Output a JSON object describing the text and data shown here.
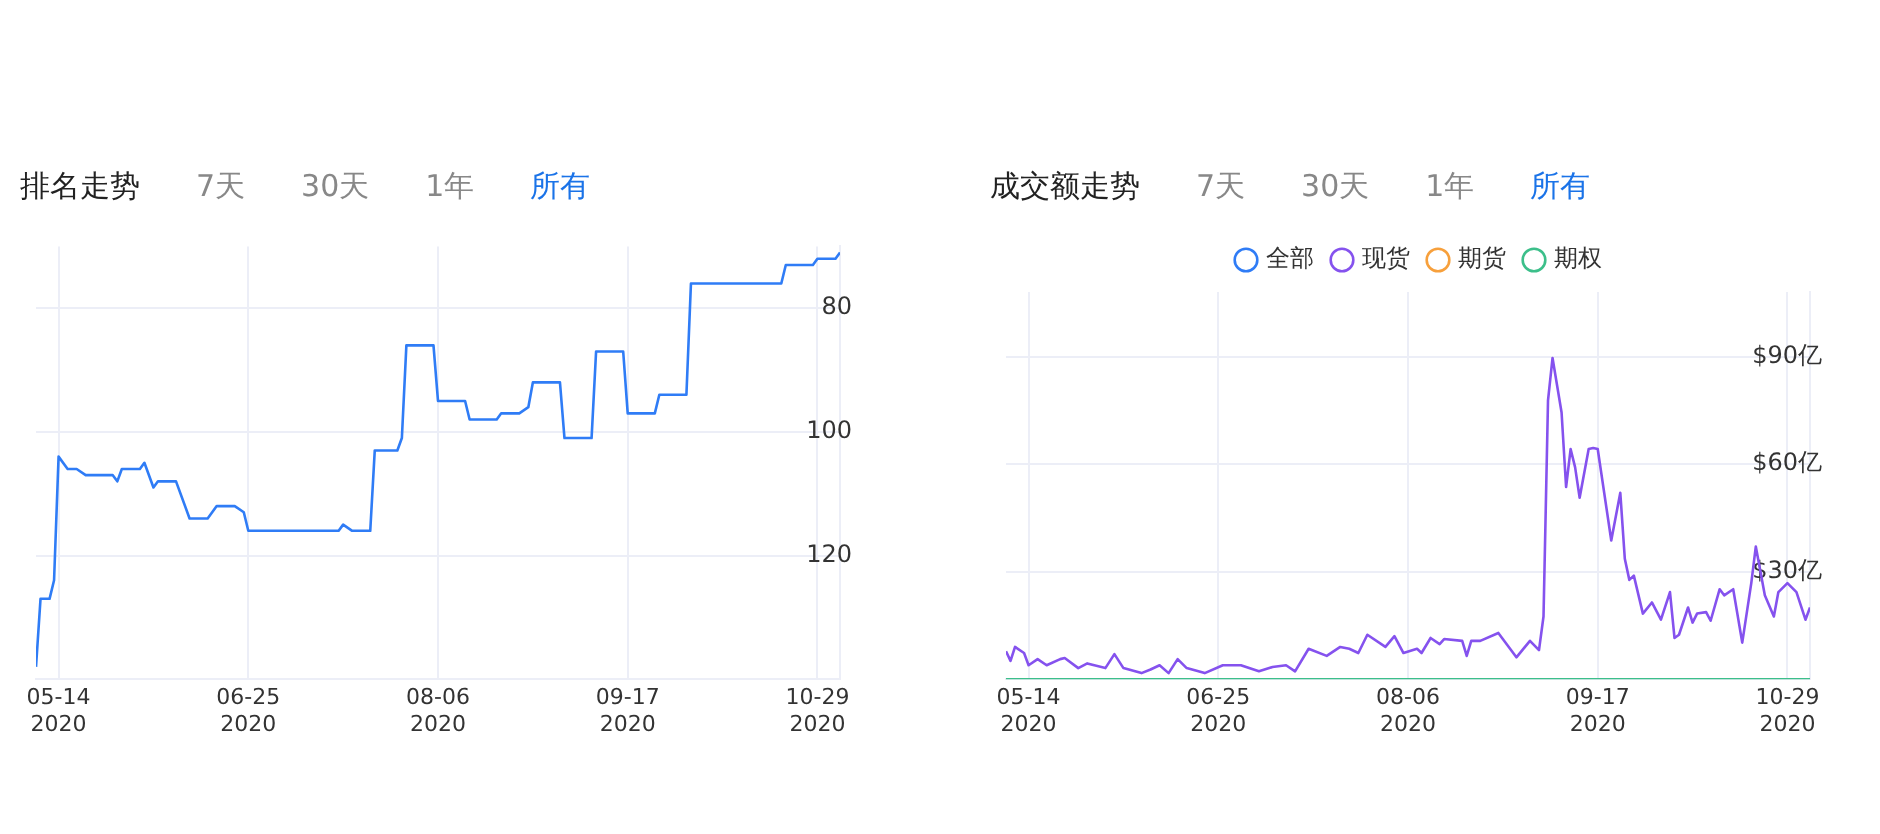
{
  "chart_data": [
    {
      "type": "line",
      "title": "排名走势",
      "annotations": [
        "7天",
        "30天",
        "1年",
        "所有"
      ],
      "x": [
        "2020-05-09",
        "2020-05-10",
        "2020-05-12",
        "2020-05-13",
        "2020-05-14",
        "2020-05-16",
        "2020-05-18",
        "2020-05-20",
        "2020-05-26",
        "2020-05-27",
        "2020-05-28",
        "2020-06-01",
        "2020-06-02",
        "2020-06-04",
        "2020-06-05",
        "2020-06-09",
        "2020-06-12",
        "2020-06-16",
        "2020-06-18",
        "2020-06-22",
        "2020-06-24",
        "2020-06-25",
        "2020-07-15",
        "2020-07-16",
        "2020-07-18",
        "2020-07-22",
        "2020-07-23",
        "2020-07-28",
        "2020-07-29",
        "2020-07-30",
        "2020-08-05",
        "2020-08-06",
        "2020-08-12",
        "2020-08-13",
        "2020-08-19",
        "2020-08-20",
        "2020-08-24",
        "2020-08-26",
        "2020-08-27",
        "2020-09-02",
        "2020-09-03",
        "2020-09-09",
        "2020-09-10",
        "2020-09-16",
        "2020-09-17",
        "2020-09-23",
        "2020-09-24",
        "2020-09-30",
        "2020-10-01",
        "2020-10-21",
        "2020-10-22",
        "2020-10-28",
        "2020-10-29",
        "2020-11-02",
        "2020-11-03"
      ],
      "series": [
        {
          "color": "#2f7cf6",
          "values": [
            138,
            127,
            127,
            124,
            104,
            106,
            106,
            107,
            107,
            108,
            106,
            106,
            105,
            109,
            108,
            108,
            114,
            114,
            112,
            112,
            113,
            116,
            116,
            115,
            116,
            116,
            103,
            103,
            101,
            86,
            86,
            95,
            95,
            98,
            98,
            97,
            97,
            96,
            92,
            92,
            101,
            101,
            87,
            87,
            97,
            97,
            94,
            94,
            76,
            76,
            73,
            73,
            72,
            72,
            71
          ]
        }
      ],
      "xlim": [
        "2020-05-09",
        "2020-11-03"
      ],
      "xticks": [
        {
          "value": "2020-05-14",
          "label": "05-14\n2020"
        },
        {
          "value": "2020-06-25",
          "label": "06-25\n2020"
        },
        {
          "value": "2020-08-06",
          "label": "08-06\n2020"
        },
        {
          "value": "2020-09-17",
          "label": "09-17\n2020"
        },
        {
          "value": "2020-10-29",
          "label": "10-29\n2020"
        }
      ],
      "ylim": [
        140,
        70
      ],
      "yticks": [
        80,
        100,
        120
      ],
      "grid": true,
      "legend": false
    },
    {
      "type": "line",
      "title": "成交额走势",
      "annotations": [
        "7天",
        "30天",
        "1年",
        "所有"
      ],
      "series": [
        {
          "name": "全部",
          "color": "#2f7cf6"
        },
        {
          "name": "现货",
          "color": "#8552ee",
          "x": [
            "2020-05-09",
            "2020-05-10",
            "2020-05-11",
            "2020-05-13",
            "2020-05-14",
            "2020-05-16",
            "2020-05-18",
            "2020-05-21",
            "2020-05-22",
            "2020-05-25",
            "2020-05-27",
            "2020-05-31",
            "2020-06-02",
            "2020-06-04",
            "2020-06-08",
            "2020-06-10",
            "2020-06-12",
            "2020-06-14",
            "2020-06-16",
            "2020-06-18",
            "2020-06-22",
            "2020-06-26",
            "2020-06-30",
            "2020-07-04",
            "2020-07-07",
            "2020-07-10",
            "2020-07-12",
            "2020-07-15",
            "2020-07-19",
            "2020-07-22",
            "2020-07-24",
            "2020-07-26",
            "2020-07-28",
            "2020-08-01",
            "2020-08-03",
            "2020-08-05",
            "2020-08-08",
            "2020-08-09",
            "2020-08-11",
            "2020-08-13",
            "2020-08-14",
            "2020-08-18",
            "2020-08-19",
            "2020-08-20",
            "2020-08-22",
            "2020-08-26",
            "2020-08-30",
            "2020-09-02",
            "2020-09-04",
            "2020-09-05",
            "2020-09-06",
            "2020-09-07",
            "2020-09-08",
            "2020-09-09",
            "2020-09-10",
            "2020-09-11",
            "2020-09-12",
            "2020-09-13",
            "2020-09-15",
            "2020-09-16",
            "2020-09-17",
            "2020-09-20",
            "2020-09-22",
            "2020-09-23",
            "2020-09-24",
            "2020-09-25",
            "2020-09-27",
            "2020-09-29",
            "2020-10-01",
            "2020-10-03",
            "2020-10-04",
            "2020-10-05",
            "2020-10-07",
            "2020-10-08",
            "2020-10-09",
            "2020-10-11",
            "2020-10-12",
            "2020-10-14",
            "2020-10-15",
            "2020-10-17",
            "2020-10-19",
            "2020-10-21",
            "2020-10-22",
            "2020-10-24",
            "2020-10-26",
            "2020-10-27",
            "2020-10-29",
            "2020-10-31",
            "2020-11-02",
            "2020-11-03"
          ],
          "values": [
            7.8,
            5.1,
            9,
            7.3,
            3.9,
            5.6,
            3.9,
            5.6,
            5.9,
            3.1,
            4.4,
            3.1,
            7,
            3.1,
            1.7,
            2.7,
            3.9,
            1.7,
            5.6,
            3.1,
            1.7,
            3.9,
            3.9,
            2.2,
            3.4,
            3.9,
            2.2,
            8.5,
            6.5,
            9,
            8.5,
            7.3,
            12.4,
            9,
            12,
            7.3,
            8.5,
            7.3,
            11.5,
            9.8,
            11.2,
            10.7,
            6.5,
            10.7,
            10.7,
            12.9,
            6.1,
            10.7,
            8.1,
            17.5,
            77.8,
            89.6,
            82,
            74.4,
            53.6,
            64.2,
            59.1,
            50.6,
            64.2,
            64.5,
            64.2,
            38.7,
            52,
            33.6,
            27.7,
            28.9,
            18.3,
            21.4,
            16.6,
            24.3,
            11.5,
            12.4,
            20,
            15.8,
            18.3,
            18.7,
            16.3,
            25.1,
            23.4,
            25.1,
            10.2,
            26.8,
            37,
            23.4,
            17.5,
            24.3,
            26.8,
            24.3,
            16.6,
            20
          ]
        },
        {
          "name": "期货",
          "color": "#f7a03c"
        },
        {
          "name": "期权",
          "color": "#3cbf8a",
          "x": [
            "2020-05-09",
            "2020-11-03"
          ],
          "values": [
            0,
            0
          ]
        }
      ],
      "xlim": [
        "2020-05-09",
        "2020-11-03"
      ],
      "xticks": [
        {
          "value": "2020-05-14",
          "label": "05-14\n2020"
        },
        {
          "value": "2020-06-25",
          "label": "06-25\n2020"
        },
        {
          "value": "2020-08-06",
          "label": "08-06\n2020"
        },
        {
          "value": "2020-09-17",
          "label": "09-17\n2020"
        },
        {
          "value": "2020-10-29",
          "label": "10-29\n2020"
        }
      ],
      "ylim": [
        0,
        108
      ],
      "yticks": [
        {
          "value": 30,
          "label": "$30亿"
        },
        {
          "value": 60,
          "label": "$60亿"
        },
        {
          "value": 90,
          "label": "$90亿"
        }
      ],
      "grid": true,
      "legend": "top"
    }
  ]
}
